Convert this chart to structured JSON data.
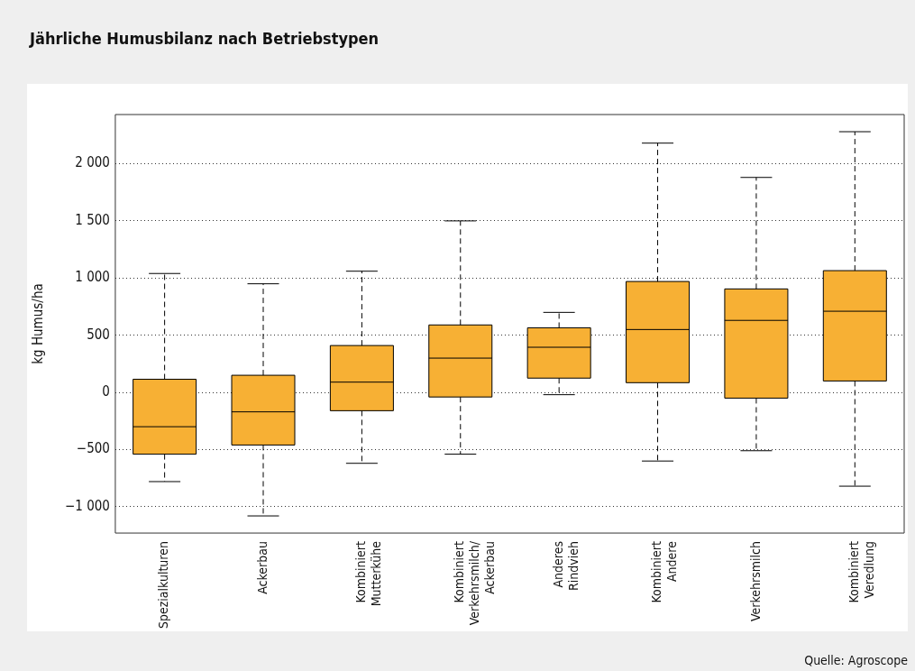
{
  "chart_data": {
    "type": "box",
    "title": "Jährliche Humusbilanz nach Betriebstypen",
    "ylabel": "kg Humus/ha",
    "annotations": [
      "Quelle: Agroscope"
    ],
    "categories": [
      "Spezialkulturen",
      "Ackerbau",
      "Kombiniert Mutterkühe",
      "Kombiniert Verkehrsmilch/ Ackerbau",
      "Anderes Rindvieh",
      "Kombiniert Andere",
      "Verkehrsmilch",
      "Kombiniert Veredlung"
    ],
    "color": "#f7b034",
    "boxes": [
      {
        "low": -780,
        "q1": -540,
        "median": -300,
        "q3": 115,
        "high": 1040
      },
      {
        "low": -1080,
        "q1": -460,
        "median": -170,
        "q3": 150,
        "high": 950
      },
      {
        "low": -620,
        "q1": -160,
        "median": 90,
        "q3": 410,
        "high": 1060
      },
      {
        "low": -540,
        "q1": -40,
        "median": 300,
        "q3": 590,
        "high": 1500
      },
      {
        "low": -20,
        "q1": 125,
        "median": 395,
        "q3": 565,
        "high": 700
      },
      {
        "low": -600,
        "q1": 85,
        "median": 550,
        "q3": 970,
        "high": 2180
      },
      {
        "low": -510,
        "q1": -50,
        "median": 630,
        "q3": 905,
        "high": 1880
      },
      {
        "low": -820,
        "q1": 100,
        "median": 710,
        "q3": 1065,
        "high": 2280
      }
    ],
    "ylim": [
      -1230,
      2430
    ],
    "yticks": [
      {
        "value": -1000,
        "label": "−1 000"
      },
      {
        "value": -500,
        "label": "−500"
      },
      0,
      500,
      {
        "value": 1000,
        "label": "1 000"
      },
      {
        "value": 1500,
        "label": "1 500"
      },
      {
        "value": 2000,
        "label": "2 000"
      }
    ],
    "grid": "y"
  }
}
